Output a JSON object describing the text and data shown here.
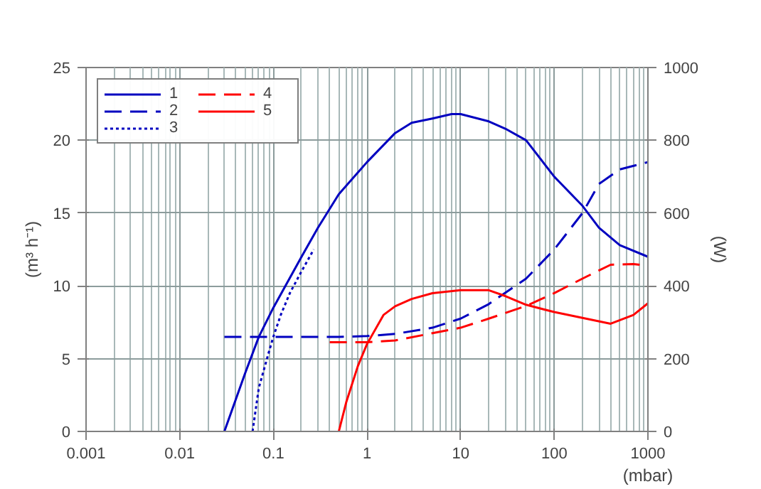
{
  "chart_data": {
    "type": "line",
    "ylabel": "(m³ h⁻¹)",
    "y2label": "(W)",
    "xlabel": "(mbar)",
    "log": "x",
    "xlim": [
      0.001,
      1000
    ],
    "xticks": [
      0.001,
      0.01,
      0.1,
      1,
      10,
      100,
      1000
    ],
    "ylim": [
      0,
      25
    ],
    "yticks": [
      0,
      5,
      10,
      15,
      20,
      25
    ],
    "y2lim": [
      0,
      1000
    ],
    "y2ticks": [
      0,
      200,
      400,
      600,
      800,
      1000
    ],
    "grid": true,
    "legend": "top left",
    "series": [
      {
        "name": "1",
        "color": "#0000c0",
        "line_style": "solid",
        "x": [
          0.03,
          0.05,
          0.07,
          0.1,
          0.2,
          0.3,
          0.5,
          1,
          2,
          3,
          5,
          8,
          10,
          20,
          30,
          50,
          100,
          200,
          300,
          500,
          1000
        ],
        "values": [
          0,
          4,
          6.5,
          8.5,
          12,
          14,
          16.3,
          18.5,
          20.5,
          21.2,
          21.5,
          21.8,
          21.8,
          21.3,
          20.8,
          20,
          17.5,
          15.5,
          14,
          12.8,
          12
        ]
      },
      {
        "name": "2",
        "color": "#0000c0",
        "line_style": "dashed",
        "axis": "y2",
        "x": [
          0.03,
          0.1,
          0.5,
          1,
          2,
          5,
          10,
          20,
          50,
          100,
          200,
          300,
          500,
          1000
        ],
        "values": [
          260,
          260,
          260,
          262,
          268,
          285,
          310,
          350,
          420,
          500,
          600,
          680,
          720,
          740
        ]
      },
      {
        "name": "3",
        "color": "#0000c0",
        "line_style": "dotted",
        "x": [
          0.06,
          0.07,
          0.09,
          0.1,
          0.12,
          0.15,
          0.2,
          0.27
        ],
        "values": [
          0,
          3,
          5.5,
          6.5,
          8,
          9.5,
          11,
          12.5
        ]
      },
      {
        "name": "4",
        "color": "#ff0000",
        "line_style": "dashed",
        "axis": "y2",
        "x": [
          0.4,
          1,
          2,
          5,
          10,
          20,
          50,
          100,
          200,
          400,
          700,
          1000
        ],
        "values": [
          245,
          245,
          250,
          270,
          285,
          310,
          345,
          380,
          420,
          458,
          460,
          455
        ]
      },
      {
        "name": "5",
        "color": "#ff0000",
        "line_style": "solid",
        "x": [
          0.5,
          0.6,
          0.8,
          1,
          1.5,
          2,
          3,
          5,
          10,
          20,
          30,
          50,
          100,
          200,
          400,
          700,
          1000
        ],
        "values": [
          0,
          2,
          4.5,
          6,
          8,
          8.6,
          9.1,
          9.5,
          9.7,
          9.7,
          9.3,
          8.7,
          8.2,
          7.8,
          7.4,
          8,
          8.8
        ]
      }
    ]
  }
}
